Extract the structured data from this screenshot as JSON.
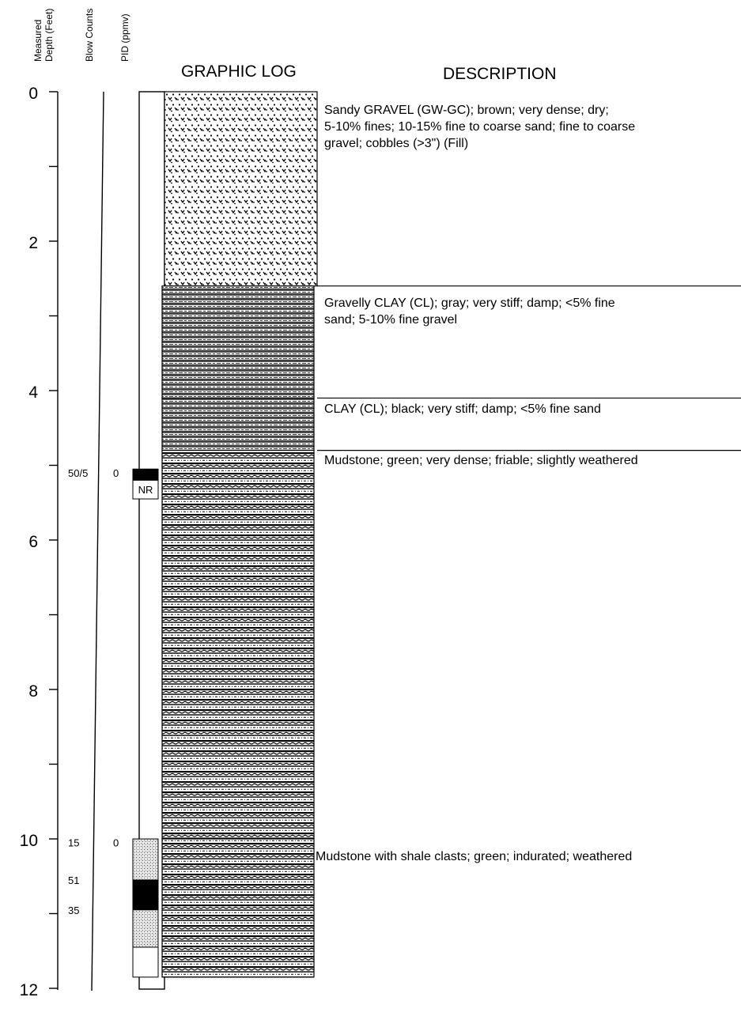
{
  "headers": {
    "depth": [
      "Measured",
      "Depth (Feet)"
    ],
    "blow_counts": "Blow Counts",
    "pid": "PID (ppmv)",
    "graphic_log": "GRAPHIC LOG",
    "description": "DESCRIPTION"
  },
  "depth_axis": {
    "min": 0,
    "max": 12,
    "labels": [
      "0",
      "2",
      "4",
      "6",
      "8",
      "10",
      "12"
    ]
  },
  "layers": [
    {
      "name": "sandy-gravel",
      "top": 0,
      "bottom": 2.6,
      "pattern": "gravel",
      "description": [
        "Sandy GRAVEL (GW-GC); brown; very dense; dry;",
        "5-10% fines; 10-15% fine to coarse sand; fine to coarse",
        "gravel; cobbles (>3\") (Fill)"
      ]
    },
    {
      "name": "gravelly-clay",
      "top": 2.6,
      "bottom": 4.1,
      "pattern": "clay",
      "description": [
        "Gravelly CLAY (CL); gray; very stiff; damp; <5% fine",
        "sand; 5-10% fine gravel"
      ]
    },
    {
      "name": "clay",
      "top": 4.1,
      "bottom": 4.8,
      "pattern": "clay",
      "description": [
        "CLAY (CL); black; very stiff; damp; <5% fine sand"
      ]
    },
    {
      "name": "mudstone",
      "top": 4.8,
      "bottom": 10.0,
      "pattern": "mudstone",
      "description": [
        "Mudstone; green; very dense; friable; slightly weathered"
      ]
    },
    {
      "name": "mudstone-shale",
      "top": 10.0,
      "bottom": 11.85,
      "pattern": "mudstone",
      "description": [
        "Mudstone with shale clasts; green; indurated; weathered"
      ]
    }
  ],
  "samples": [
    {
      "top": 5.05,
      "bottom": 5.2,
      "fill": "black",
      "label": ""
    },
    {
      "top": 5.2,
      "bottom": 5.45,
      "fill": "white",
      "label": "NR"
    },
    {
      "top": 10.0,
      "bottom": 10.55,
      "fill": "stipple",
      "label": ""
    },
    {
      "top": 10.55,
      "bottom": 10.95,
      "fill": "black",
      "label": ""
    },
    {
      "top": 10.95,
      "bottom": 11.45,
      "fill": "stipple",
      "label": ""
    },
    {
      "top": 11.45,
      "bottom": 11.85,
      "fill": "white",
      "label": ""
    }
  ],
  "blow_counts": [
    {
      "depth": 5.1,
      "value": "50/5"
    },
    {
      "depth": 10.05,
      "value": "15"
    },
    {
      "depth": 10.55,
      "value": "51"
    },
    {
      "depth": 10.95,
      "value": "35"
    }
  ],
  "pid_values": [
    {
      "depth": 5.1,
      "value": "0"
    },
    {
      "depth": 10.05,
      "value": "0"
    }
  ]
}
